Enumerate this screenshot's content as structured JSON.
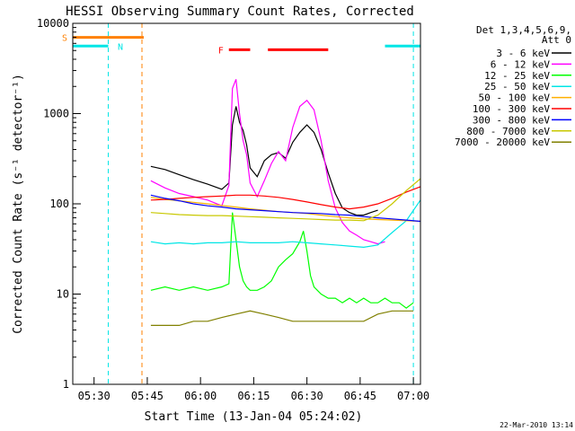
{
  "chart_data": {
    "type": "line",
    "title": "HESSI Observing Summary Count Rates, Corrected",
    "xlabel": "Start Time (13-Jan-04 05:24:02)",
    "ylabel": "Corrected Count Rate (s⁻¹ detector⁻¹)",
    "x_unit": "minutes after 05:24:02",
    "xlim": [
      0,
      98
    ],
    "ylim": [
      1,
      10000
    ],
    "yscale": "log",
    "x_ticks": [
      {
        "label": "05:30",
        "value": 6
      },
      {
        "label": "05:45",
        "value": 21
      },
      {
        "label": "06:00",
        "value": 36
      },
      {
        "label": "06:15",
        "value": 51
      },
      {
        "label": "06:30",
        "value": 66
      },
      {
        "label": "06:45",
        "value": 81
      },
      {
        "label": "07:00",
        "value": 96
      }
    ],
    "y_ticks": [
      {
        "label": "1",
        "value": 1
      },
      {
        "label": "10",
        "value": 10
      },
      {
        "label": "100",
        "value": 100
      },
      {
        "label": "1000",
        "value": 1000
      },
      {
        "label": "10000",
        "value": 10000
      }
    ],
    "legend_title": [
      "Det 1,3,4,5,6,9,",
      "Att 0"
    ],
    "legend_position": "right",
    "timestamp": "22-Mar-2010 13:14",
    "flags": [
      {
        "label": "S",
        "color": "#ff8000",
        "level": 7000,
        "x": [
          0,
          20
        ]
      },
      {
        "label": "N",
        "color": "#00e6e6",
        "level": 5600,
        "x": [
          0,
          10
        ]
      },
      {
        "label": "",
        "color": "#00e6e6",
        "level": 5600,
        "x": [
          88,
          98
        ]
      },
      {
        "label": "F",
        "color": "#ff0000",
        "level": 5100,
        "x": [
          44,
          50
        ]
      },
      {
        "label": "",
        "color": "#ff0000",
        "level": 5100,
        "x": [
          55,
          72
        ]
      }
    ],
    "vlines": [
      {
        "x": 10,
        "color": "#00e6e6"
      },
      {
        "x": 19.5,
        "color": "#ff8000"
      },
      {
        "x": 96,
        "color": "#00e6e6"
      }
    ],
    "series": [
      {
        "name": "3 - 6 keV",
        "color": "#000000",
        "x": [
          22,
          26,
          30,
          34,
          38,
          42,
          44,
          45,
          46,
          47,
          48,
          49,
          50,
          52,
          54,
          56,
          58,
          60,
          62,
          64,
          66,
          68,
          70,
          72,
          74,
          76,
          78,
          80,
          82,
          84,
          86
        ],
        "y": [
          260,
          240,
          210,
          185,
          165,
          145,
          170,
          750,
          1200,
          800,
          650,
          450,
          250,
          200,
          300,
          350,
          370,
          320,
          480,
          620,
          750,
          620,
          400,
          220,
          130,
          90,
          80,
          75,
          75,
          80,
          85
        ]
      },
      {
        "name": "6 - 12 keV",
        "color": "#ff00ff",
        "x": [
          22,
          26,
          30,
          34,
          38,
          42,
          44,
          45,
          46,
          47,
          48,
          49,
          50,
          52,
          54,
          56,
          58,
          60,
          62,
          64,
          66,
          68,
          70,
          72,
          74,
          76,
          78,
          80,
          82,
          84,
          86,
          88
        ],
        "y": [
          180,
          150,
          130,
          120,
          110,
          95,
          160,
          1900,
          2400,
          1000,
          500,
          350,
          170,
          120,
          180,
          280,
          380,
          300,
          700,
          1200,
          1400,
          1100,
          500,
          180,
          90,
          62,
          50,
          45,
          40,
          38,
          36,
          38
        ]
      },
      {
        "name": "12 - 25 keV",
        "color": "#00ff00",
        "x": [
          22,
          26,
          30,
          34,
          38,
          42,
          44,
          45,
          46,
          47,
          48,
          49,
          50,
          52,
          54,
          56,
          58,
          60,
          62,
          64,
          65,
          66,
          67,
          68,
          70,
          72,
          74,
          76,
          78,
          80,
          82,
          84,
          86,
          88,
          90,
          92,
          94,
          96
        ],
        "y": [
          11,
          12,
          11,
          12,
          11,
          12,
          13,
          80,
          40,
          20,
          14,
          12,
          11,
          11,
          12,
          14,
          20,
          24,
          28,
          38,
          50,
          30,
          16,
          12,
          10,
          9,
          9,
          8,
          9,
          8,
          9,
          8,
          8,
          9,
          8,
          8,
          7,
          8
        ]
      },
      {
        "name": "25 - 50 keV",
        "color": "#00e6e6",
        "x": [
          22,
          26,
          30,
          34,
          38,
          42,
          46,
          50,
          54,
          58,
          62,
          66,
          70,
          74,
          78,
          82,
          86,
          90,
          94,
          98
        ],
        "y": [
          38,
          36,
          37,
          36,
          37,
          37,
          38,
          37,
          37,
          37,
          38,
          37,
          36,
          35,
          34,
          33,
          35,
          48,
          65,
          110
        ]
      },
      {
        "name": "50 - 100 keV",
        "color": "#ffb000",
        "x": [
          22,
          26,
          30,
          34,
          38,
          42,
          46,
          50,
          54,
          58,
          62,
          66,
          70,
          74,
          78,
          82,
          86,
          90,
          94,
          98
        ],
        "y": [
          118,
          112,
          108,
          104,
          100,
          96,
          92,
          88,
          85,
          82,
          80,
          78,
          75,
          72,
          70,
          68,
          67,
          66,
          65,
          64
        ]
      },
      {
        "name": "100 - 300 keV",
        "color": "#ff0000",
        "x": [
          22,
          26,
          30,
          34,
          38,
          42,
          46,
          50,
          54,
          58,
          62,
          66,
          70,
          74,
          78,
          82,
          86,
          90,
          94,
          98
        ],
        "y": [
          110,
          112,
          115,
          118,
          120,
          122,
          125,
          125,
          122,
          118,
          112,
          105,
          98,
          92,
          88,
          92,
          100,
          115,
          135,
          155
        ]
      },
      {
        "name": "300 - 800 keV",
        "color": "#0000ff",
        "x": [
          22,
          26,
          30,
          34,
          38,
          42,
          46,
          50,
          54,
          58,
          62,
          66,
          70,
          74,
          78,
          82,
          86,
          90,
          94,
          98
        ],
        "y": [
          125,
          115,
          108,
          100,
          95,
          92,
          88,
          86,
          84,
          82,
          80,
          79,
          78,
          76,
          75,
          72,
          70,
          68,
          66,
          64
        ]
      },
      {
        "name": "800 - 7000 keV",
        "color": "#c8c800",
        "x": [
          22,
          26,
          30,
          34,
          38,
          42,
          46,
          50,
          54,
          58,
          62,
          66,
          70,
          74,
          78,
          82,
          86,
          90,
          94,
          98
        ],
        "y": [
          80,
          78,
          76,
          75,
          74,
          74,
          73,
          72,
          71,
          70,
          69,
          68,
          67,
          66,
          66,
          65,
          75,
          100,
          140,
          190
        ]
      },
      {
        "name": "7000 - 20000 keV",
        "color": "#808000",
        "x": [
          22,
          26,
          30,
          34,
          38,
          42,
          46,
          50,
          54,
          58,
          62,
          66,
          70,
          74,
          78,
          82,
          86,
          90,
          94,
          96
        ],
        "y": [
          4.5,
          4.5,
          4.5,
          5,
          5,
          5.5,
          6,
          6.5,
          6,
          5.5,
          5,
          5,
          5,
          5,
          5,
          5,
          6,
          6.5,
          6.5,
          6.5
        ]
      }
    ]
  }
}
